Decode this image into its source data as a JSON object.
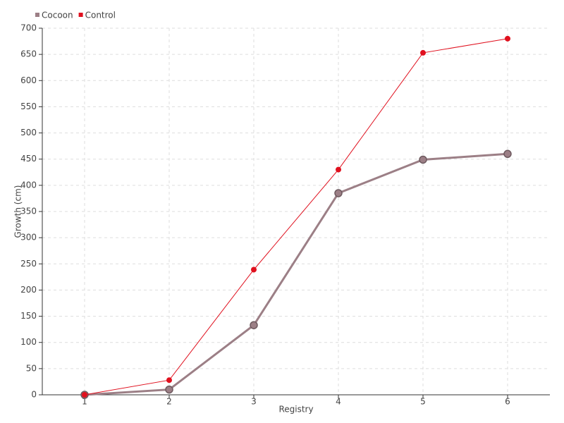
{
  "chart_data": {
    "type": "line",
    "x_label": "Registry",
    "y_label": "Growth (cm)",
    "x": [
      1,
      2,
      3,
      4,
      5,
      6
    ],
    "xlim": [
      0.5,
      6.5
    ],
    "xticks": [
      1,
      2,
      3,
      4,
      5,
      6
    ],
    "ylim": [
      0,
      700
    ],
    "yticks": [
      0,
      50,
      100,
      150,
      200,
      250,
      300,
      350,
      400,
      450,
      500,
      550,
      600,
      650,
      700
    ],
    "grid": true,
    "legend": "top-left",
    "series": [
      {
        "name": "Cocoon",
        "color": "#9c7f86",
        "values": [
          0,
          10,
          133,
          385,
          449,
          460
        ]
      },
      {
        "name": "Control",
        "color": "#e0101e",
        "values": [
          0,
          28,
          239,
          430,
          653,
          680
        ]
      }
    ]
  }
}
